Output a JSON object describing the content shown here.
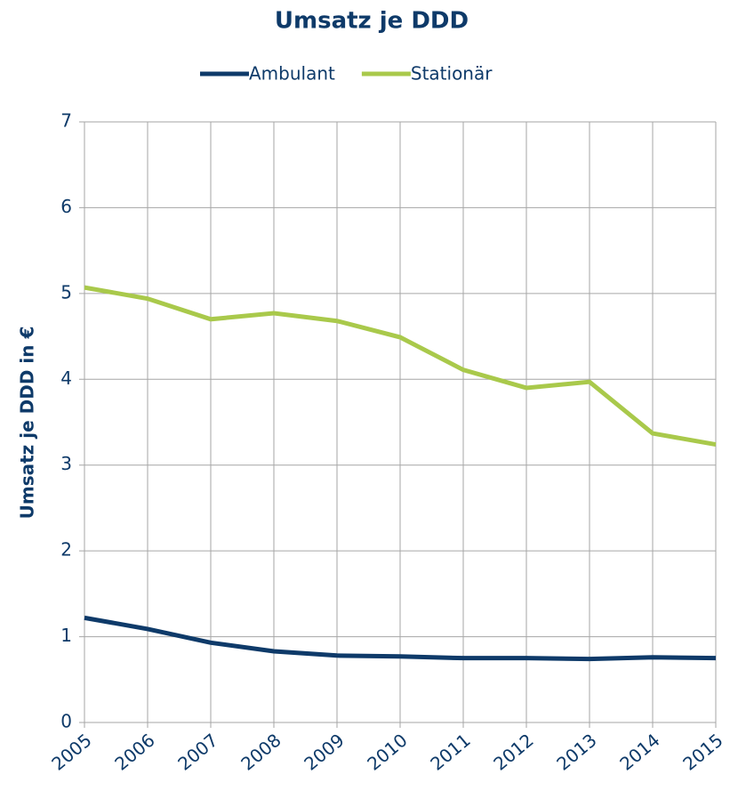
{
  "chart_data": {
    "type": "line",
    "title": "Umsatz je DDD",
    "y_label": "Umsatz je DDD in €",
    "categories": [
      "2005",
      "2006",
      "2007",
      "2008",
      "2009",
      "2010",
      "2011",
      "2012",
      "2013",
      "2014",
      "2015"
    ],
    "series": [
      {
        "name": "Ambulant",
        "color": "#0e3a69",
        "values": [
          1.22,
          1.09,
          0.93,
          0.83,
          0.78,
          0.77,
          0.75,
          0.75,
          0.74,
          0.76,
          0.75
        ]
      },
      {
        "name": "Stationär",
        "color": "#a9c94b",
        "values": [
          5.07,
          4.94,
          4.7,
          4.77,
          4.68,
          4.49,
          4.11,
          3.9,
          3.97,
          3.37,
          3.24
        ]
      }
    ],
    "ylim": [
      0,
      7
    ],
    "yticks": [
      0,
      1,
      2,
      3,
      4,
      5,
      6,
      7
    ],
    "grid": true,
    "legend": "top"
  }
}
